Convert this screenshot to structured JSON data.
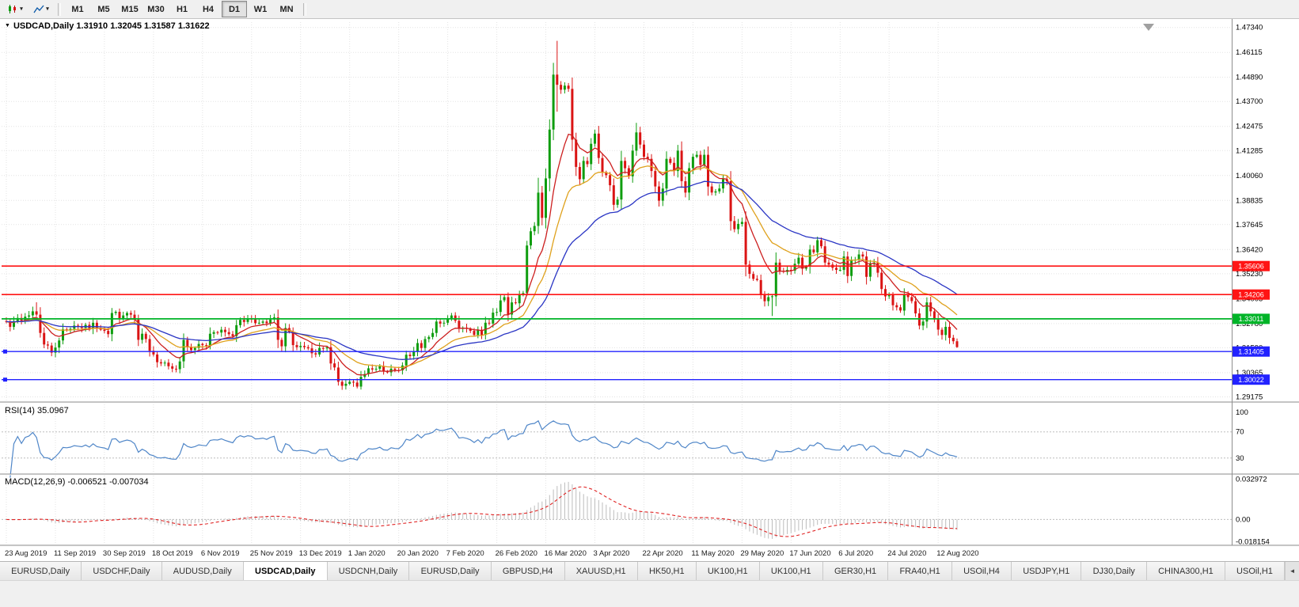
{
  "toolbar": {
    "timeframes": [
      {
        "label": "M1",
        "active": false
      },
      {
        "label": "M5",
        "active": false
      },
      {
        "label": "M15",
        "active": false
      },
      {
        "label": "M30",
        "active": false
      },
      {
        "label": "H1",
        "active": false
      },
      {
        "label": "H4",
        "active": false
      },
      {
        "label": "D1",
        "active": true
      },
      {
        "label": "W1",
        "active": false
      },
      {
        "label": "MN",
        "active": false
      }
    ]
  },
  "icons": {
    "caret_down": "▾",
    "dropdown_small": "▼",
    "tab_scroll_left": "◄"
  },
  "chart": {
    "title": "USDCAD,Daily 1.31910 1.32045 1.31587 1.31622",
    "symbol": "USDCAD",
    "period": "Daily",
    "open": "1.31910",
    "high": "1.32045",
    "low": "1.31587",
    "close": "1.31622",
    "price_ticks": [
      "1.47340",
      "1.46115",
      "1.44890",
      "1.43700",
      "1.42475",
      "1.41285",
      "1.40060",
      "1.38835",
      "1.37645",
      "1.36420",
      "1.35230",
      "1.34005",
      "1.32780",
      "1.31590",
      "1.30365",
      "1.29175"
    ],
    "date_ticks": [
      "23 Aug 2019",
      "11 Sep 2019",
      "30 Sep 2019",
      "18 Oct 2019",
      "6 Nov 2019",
      "25 Nov 2019",
      "13 Dec 2019",
      "1 Jan 2020",
      "20 Jan 2020",
      "7 Feb 2020",
      "26 Feb 2020",
      "16 Mar 2020",
      "3 Apr 2020",
      "22 Apr 2020",
      "11 May 2020",
      "29 May 2020",
      "17 Jun 2020",
      "6 Jul 2020",
      "24 Jul 2020",
      "12 Aug 2020"
    ],
    "hlines": [
      {
        "price": 1.35606,
        "label": "1.35606",
        "color": "#ff1414",
        "type": "resistance",
        "handle_left": false
      },
      {
        "price": 1.34206,
        "label": "1.34206",
        "color": "#ff1414",
        "type": "resistance",
        "handle_left": false
      },
      {
        "price": 1.33011,
        "label": "1.33011",
        "color": "#00b428",
        "type": "support",
        "handle_left": false
      },
      {
        "price": 1.31405,
        "label": "1.31405",
        "color": "#2222ff",
        "type": "support",
        "handle_left": true
      },
      {
        "price": 1.30022,
        "label": "1.30022",
        "color": "#2222ff",
        "type": "support",
        "handle_left": true
      }
    ]
  },
  "indicators": {
    "rsi": {
      "label": "RSI(14) 35.0967",
      "period": 14,
      "value": 35.0967,
      "levels": [
        {
          "value": 100,
          "label": "100",
          "line": false
        },
        {
          "value": 70,
          "label": "70",
          "line": true
        },
        {
          "value": 30,
          "label": "30",
          "line": true
        }
      ]
    },
    "macd": {
      "label": "MACD(12,26,9) -0.006521 -0.007034",
      "fast": 12,
      "slow": 26,
      "signal_period": 9,
      "main_value": -0.006521,
      "signal_value": -0.007034,
      "axis": [
        {
          "value": 0.032972,
          "label": "0.032972"
        },
        {
          "value": 0,
          "label": "0.00"
        },
        {
          "value": -0.018154,
          "label": "-0.018154"
        }
      ]
    }
  },
  "chart_data": {
    "type": "candlestick",
    "symbol": "USDCAD",
    "timeframe": "Daily",
    "ylim": [
      1.29,
      1.476
    ],
    "label_every": 13,
    "first_open": 1.329,
    "closes": [
      1.3288,
      1.3262,
      1.329,
      1.3306,
      1.3292,
      1.3312,
      1.3318,
      1.3338,
      1.3322,
      1.3232,
      1.3175,
      1.317,
      1.3135,
      1.316,
      1.3195,
      1.325,
      1.3245,
      1.3252,
      1.3268,
      1.3262,
      1.3256,
      1.3272,
      1.3252,
      1.3282,
      1.3256,
      1.3248,
      1.3242,
      1.3226,
      1.333,
      1.3336,
      1.3302,
      1.3318,
      1.333,
      1.3322,
      1.3298,
      1.3198,
      1.3228,
      1.3202,
      1.3144,
      1.3126,
      1.3088,
      1.3082,
      1.3086,
      1.3068,
      1.3056,
      1.3054,
      1.3092,
      1.3198,
      1.3162,
      1.3148,
      1.3158,
      1.3178,
      1.3172,
      1.3168,
      1.3228,
      1.3236,
      1.3234,
      1.3248,
      1.3236,
      1.3226,
      1.3216,
      1.327,
      1.3296,
      1.3286,
      1.3302,
      1.3298,
      1.328,
      1.3282,
      1.3288,
      1.328,
      1.3298,
      1.3308,
      1.3198,
      1.3166,
      1.3256,
      1.3238,
      1.3172,
      1.3162,
      1.3168,
      1.3162,
      1.3156,
      1.3132,
      1.3126,
      1.3158,
      1.3156,
      1.3162,
      1.3082,
      1.3062,
      1.2992,
      1.2972,
      1.2982,
      1.2992,
      1.2988,
      1.2968,
      1.3016,
      1.303,
      1.3058,
      1.3052,
      1.3056,
      1.3068,
      1.3042,
      1.3038,
      1.3056,
      1.305,
      1.3048,
      1.3072,
      1.3125,
      1.3118,
      1.3142,
      1.3182,
      1.3158,
      1.3202,
      1.3212,
      1.3232,
      1.3288,
      1.3278,
      1.3282,
      1.3302,
      1.3318,
      1.3292,
      1.3252,
      1.3258,
      1.3252,
      1.3242,
      1.3222,
      1.3248,
      1.3222,
      1.3282,
      1.3278,
      1.3332,
      1.3335,
      1.3392,
      1.3408,
      1.3322,
      1.3382,
      1.3378,
      1.3422,
      1.3428,
      1.3662,
      1.3732,
      1.3758,
      1.3922,
      1.3798,
      1.3992,
      1.4232,
      1.4502,
      1.4452,
      1.4428,
      1.4448,
      1.4432,
      1.4182,
      1.4048,
      1.3988,
      1.4078,
      1.4062,
      1.4162,
      1.4212,
      1.4092,
      1.4022,
      1.4008,
      1.3958,
      1.3862,
      1.3888,
      1.4078,
      1.4042,
      1.4002,
      1.4128,
      1.4218,
      1.4158,
      1.4098,
      1.4088,
      1.4028,
      1.3952,
      1.3882,
      1.3942,
      1.4088,
      1.4068,
      1.4028,
      1.4128,
      1.3978,
      1.3922,
      1.4042,
      1.4098,
      1.4108,
      1.4058,
      1.4108,
      1.3952,
      1.3922,
      1.3928,
      1.3942,
      1.3988,
      1.3978,
      1.3782,
      1.3742,
      1.3768,
      1.3778,
      1.3568,
      1.3522,
      1.3498,
      1.3492,
      1.3418,
      1.3388,
      1.3408,
      1.3412,
      1.3578,
      1.3538,
      1.3532,
      1.3542,
      1.3538,
      1.3572,
      1.3602,
      1.3548,
      1.3558,
      1.3642,
      1.3628,
      1.3688,
      1.3658,
      1.3578,
      1.3568,
      1.3552,
      1.3542,
      1.3542,
      1.3608,
      1.3512,
      1.3588,
      1.3592,
      1.3618,
      1.3608,
      1.3508,
      1.3572,
      1.3578,
      1.3528,
      1.3448,
      1.3412,
      1.3418,
      1.3368,
      1.3358,
      1.3342,
      1.3422,
      1.3408,
      1.3388,
      1.3328,
      1.3268,
      1.3288,
      1.3382,
      1.3338,
      1.3298,
      1.3248,
      1.3222,
      1.3262,
      1.3208,
      1.3191,
      1.31622
    ],
    "wick_overrides": {
      "8": [
        1.3383,
        null
      ],
      "89": [
        null,
        1.2952
      ],
      "138": [
        1.3685,
        1.3415
      ],
      "141": [
        1.3995,
        null
      ],
      "145": [
        1.456,
        1.418
      ],
      "146": [
        1.4668,
        1.432
      ],
      "167": [
        1.4265,
        null
      ],
      "203": [
        null,
        1.3315
      ],
      "252": [
        1.32045,
        1.31587
      ]
    },
    "overlays": [
      {
        "name": "MA fast",
        "type": "ema",
        "period": 10,
        "color": "#cc1f1f"
      },
      {
        "name": "MA mid",
        "type": "ema",
        "period": 21,
        "color": "#dfa11c"
      },
      {
        "name": "MA slow",
        "type": "ema",
        "period": 42,
        "color": "#2a35c4"
      }
    ]
  },
  "tabs": {
    "active_index": 3,
    "items": [
      "EURUSD,Daily",
      "USDCHF,Daily",
      "AUDUSD,Daily",
      "USDCAD,Daily",
      "USDCNH,Daily",
      "EURUSD,Daily",
      "GBPUSD,H4",
      "XAUUSD,H1",
      "HK50,H1",
      "UK100,H1",
      "UK100,H1",
      "GER30,H1",
      "FRA40,H1",
      "USOil,H4",
      "USDJPY,H1",
      "DJ30,Daily",
      "CHINA300,H1",
      "USOil,H1"
    ]
  },
  "colors": {
    "bull": "#0f9d0f",
    "bear": "#da1414",
    "rsi_line": "#4f86c8",
    "macd_hist": "#bcbcbc",
    "macd_signal": "#e02424",
    "grid": "#e3e3e3",
    "level_dash": "#bdbdbd",
    "axis_text": "#000000",
    "panel_border": "#8e8e8e"
  }
}
